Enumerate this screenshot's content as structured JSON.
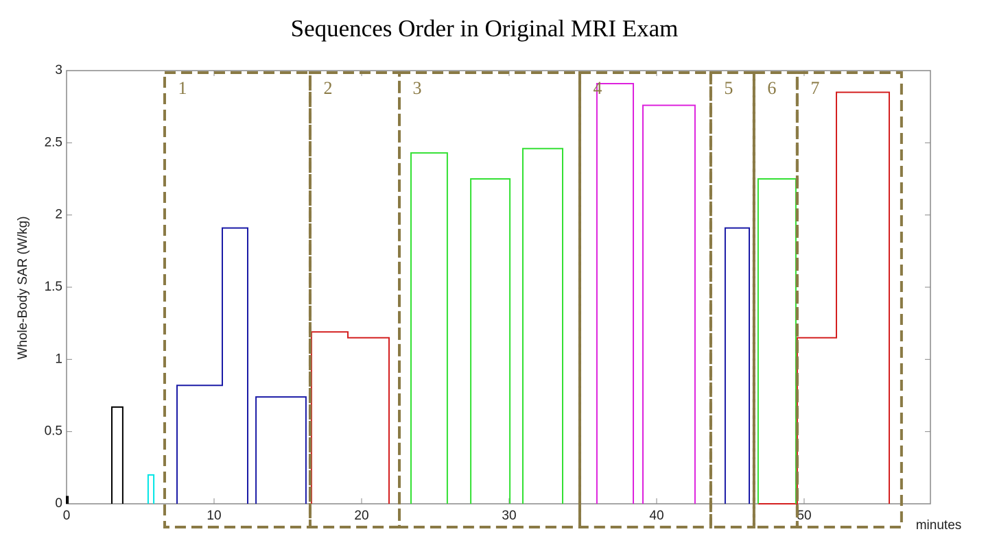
{
  "chart_data": {
    "type": "line",
    "step": true,
    "title": "Sequences Order in Original MRI Exam",
    "x_label": "minutes",
    "y_label": "Whole-Body SAR (W/kg)",
    "xlim": [
      0,
      58.56
    ],
    "ylim": [
      0,
      3
    ],
    "xticks": [
      0,
      10,
      20,
      30,
      40,
      50
    ],
    "yticks": [
      0,
      0.5,
      1,
      1.5,
      2,
      2.5,
      3
    ],
    "series": [
      {
        "color": "#000000",
        "x": [
          0,
          0,
          0.1,
          0.1,
          null,
          3.07,
          3.07,
          3.81,
          3.81
        ],
        "values": [
          0,
          0.05,
          0.05,
          0,
          null,
          0,
          0.67,
          0.67,
          0
        ]
      },
      {
        "color": "#00e5e5",
        "x": [
          5.53,
          5.53,
          5.91,
          5.91
        ],
        "values": [
          0,
          0.2,
          0.2,
          0
        ]
      },
      {
        "color": "#1a1aa6",
        "x": [
          7.49,
          7.49,
          10.56,
          10.56,
          12.28,
          12.28,
          null,
          12.84,
          12.84,
          16.23,
          16.23,
          null,
          44.65,
          44.65,
          46.28,
          46.28
        ],
        "values": [
          0,
          0.82,
          0.82,
          1.91,
          1.91,
          0,
          null,
          0,
          0.74,
          0.74,
          0,
          null,
          0,
          1.91,
          1.91,
          0
        ]
      },
      {
        "color": "#d42020",
        "x": [
          16.6,
          16.6,
          19.07,
          19.07,
          21.86,
          21.86,
          null,
          46.88,
          49.53,
          49.53,
          52.19,
          52.19,
          55.77,
          55.77
        ],
        "values": [
          0,
          1.19,
          1.19,
          1.15,
          1.15,
          0,
          null,
          0,
          0,
          1.15,
          1.15,
          2.85,
          2.85,
          0
        ]
      },
      {
        "color": "#33e033",
        "x": [
          23.35,
          23.35,
          25.81,
          25.81,
          null,
          27.4,
          27.4,
          30.05,
          30.05,
          null,
          30.93,
          30.93,
          33.63,
          33.63,
          null,
          46.88,
          46.88,
          49.44,
          49.44
        ],
        "values": [
          0,
          2.43,
          2.43,
          0,
          null,
          0,
          2.25,
          2.25,
          0,
          null,
          0,
          2.46,
          2.46,
          0,
          null,
          0,
          2.25,
          2.25,
          0
        ]
      },
      {
        "color": "#dd22dd",
        "x": [
          35.95,
          35.95,
          38.42,
          38.42,
          null,
          39.07,
          39.07,
          42.6,
          42.6
        ],
        "values": [
          0,
          2.91,
          2.91,
          0,
          null,
          0,
          2.76,
          2.76,
          0
        ]
      }
    ],
    "regions": [
      {
        "label": "1",
        "xrange": [
          6.65,
          16.51
        ]
      },
      {
        "label": "2",
        "xrange": [
          16.51,
          22.56
        ]
      },
      {
        "label": "3",
        "xrange": [
          22.56,
          34.79
        ]
      },
      {
        "label": "4",
        "xrange": [
          34.79,
          43.67
        ]
      },
      {
        "label": "5",
        "xrange": [
          43.67,
          46.6
        ]
      },
      {
        "label": "6",
        "xrange": [
          46.6,
          49.53
        ]
      },
      {
        "label": "7",
        "xrange": [
          49.53,
          56.6
        ]
      }
    ],
    "region_color": "#8a7a45"
  }
}
